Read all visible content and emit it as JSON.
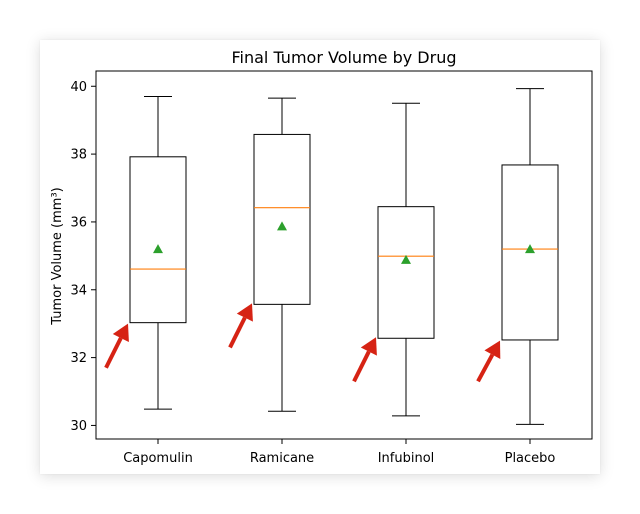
{
  "chart_data": {
    "type": "box",
    "title": "Final Tumor Volume by Drug",
    "xlabel": "",
    "ylabel": "Tumor Volume (mm³)",
    "ylim": [
      29.6,
      40.45
    ],
    "yticks": [
      30,
      32,
      34,
      36,
      38,
      40
    ],
    "categories": [
      "Capomulin",
      "Ramicane",
      "Infubinol",
      "Placebo"
    ],
    "boxes": [
      {
        "whisker_low": 30.48,
        "q1": 33.03,
        "median": 34.61,
        "q3": 37.92,
        "whisker_high": 39.7,
        "mean": 35.2
      },
      {
        "whisker_low": 30.42,
        "q1": 33.57,
        "median": 36.42,
        "q3": 38.58,
        "whisker_high": 39.65,
        "mean": 35.87
      },
      {
        "whisker_low": 30.28,
        "q1": 32.57,
        "median": 34.99,
        "q3": 36.45,
        "whisker_high": 39.5,
        "mean": 34.88
      },
      {
        "whisker_low": 30.03,
        "q1": 32.52,
        "median": 35.2,
        "q3": 37.68,
        "whisker_high": 39.93,
        "mean": 35.2
      }
    ],
    "grid": false,
    "colors": {
      "box": "#000000",
      "median": "#ff7f0e",
      "mean": "#2ca02c",
      "annotation_arrow": "#d62314"
    },
    "annotations": [
      {
        "type": "arrow",
        "category": "Capomulin",
        "from_y": 31.7,
        "to_y": 33.0
      },
      {
        "type": "arrow",
        "category": "Ramicane",
        "from_y": 32.3,
        "to_y": 33.6
      },
      {
        "type": "arrow",
        "category": "Infubinol",
        "from_y": 31.3,
        "to_y": 32.6
      },
      {
        "type": "arrow",
        "category": "Placebo",
        "from_y": 31.3,
        "to_y": 32.5
      }
    ]
  }
}
